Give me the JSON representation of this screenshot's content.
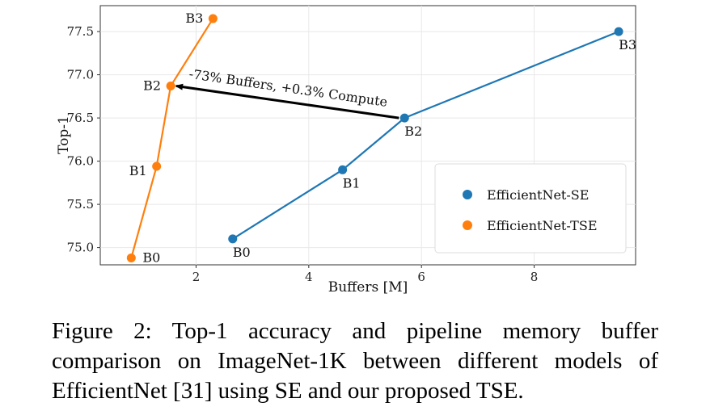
{
  "chart_data": {
    "type": "line",
    "xlabel": "Buffers [M]",
    "ylabel": "Top-1",
    "xlim": [
      0.3,
      9.8
    ],
    "ylim": [
      74.8,
      77.8
    ],
    "xticks": [
      2,
      4,
      6,
      8
    ],
    "yticks": [
      75.0,
      75.5,
      76.0,
      76.5,
      77.0,
      77.5
    ],
    "grid": true,
    "legend_position": "lower-right",
    "series": [
      {
        "name": "EfficientNet-SE",
        "color": "#1f77b4",
        "x": [
          2.65,
          4.6,
          5.7,
          9.5
        ],
        "y": [
          75.1,
          75.9,
          76.5,
          77.5
        ],
        "labels": [
          "B0",
          "B1",
          "B2",
          "B3"
        ]
      },
      {
        "name": "EfficientNet-TSE",
        "color": "#ff7f0e",
        "x": [
          0.85,
          1.3,
          1.55,
          2.3
        ],
        "y": [
          74.88,
          75.94,
          76.87,
          77.65
        ],
        "labels": [
          "B0",
          "B1",
          "B2",
          "B3"
        ]
      }
    ],
    "annotation": {
      "text": "-73% Buffers, +0.3% Compute",
      "from": [
        5.6,
        76.5
      ],
      "to": [
        1.65,
        76.87
      ]
    }
  },
  "caption": "Figure 2: Top-1 accuracy and pipeline memory buffer comparison on ImageNet-1K between different models of EfficientNet [31] using SE and our proposed TSE."
}
